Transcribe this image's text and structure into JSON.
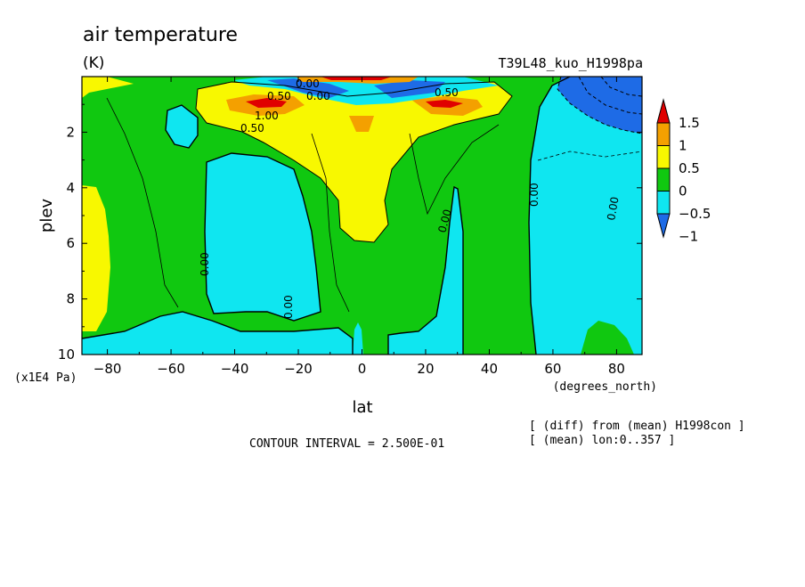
{
  "chart_data": {
    "type": "heatmap",
    "title": "air temperature",
    "units": "(K)",
    "run_id": "T39L48_kuo_H1998pa",
    "xlabel": "lat",
    "x_units": "(degrees_north)",
    "ylabel": "plev",
    "y_units": "(x1E4 Pa)",
    "xlim": [
      -88,
      88
    ],
    "ylim": [
      10,
      0
    ],
    "x_ticks": [
      -80,
      -60,
      -40,
      -20,
      0,
      20,
      40,
      60,
      80
    ],
    "x_tick_labels": [
      "−80",
      "−60",
      "−40",
      "−20",
      "0",
      "20",
      "40",
      "60",
      "80"
    ],
    "y_ticks": [
      2,
      4,
      6,
      8,
      10
    ],
    "y_tick_labels": [
      "2",
      "4",
      "6",
      "8",
      "10"
    ],
    "contour_interval": "CONTOUR INTERVAL = 2.500E-01",
    "notes": [
      "[ (diff) from (mean) H1998con ]",
      "[ (mean) lon:0..357 ]"
    ],
    "colorbar": {
      "levels": [
        -1,
        -0.5,
        0,
        0.5,
        1,
        1.5
      ],
      "labels": [
        "1.5",
        "1",
        "0.5",
        "0",
        "−0.5",
        "−1"
      ],
      "colors": [
        "#1e6be6",
        "#0fe6f0",
        "#10c810",
        "#f8f800",
        "#f4a000",
        "#e00000"
      ]
    },
    "contour_labels": [
      "1.00",
      "0.50",
      "0.00",
      "0.00",
      "0.00",
      "0.00",
      "0.00",
      "0.00",
      "0.50",
      "0.00",
      "0.50"
    ],
    "grid": false
  }
}
